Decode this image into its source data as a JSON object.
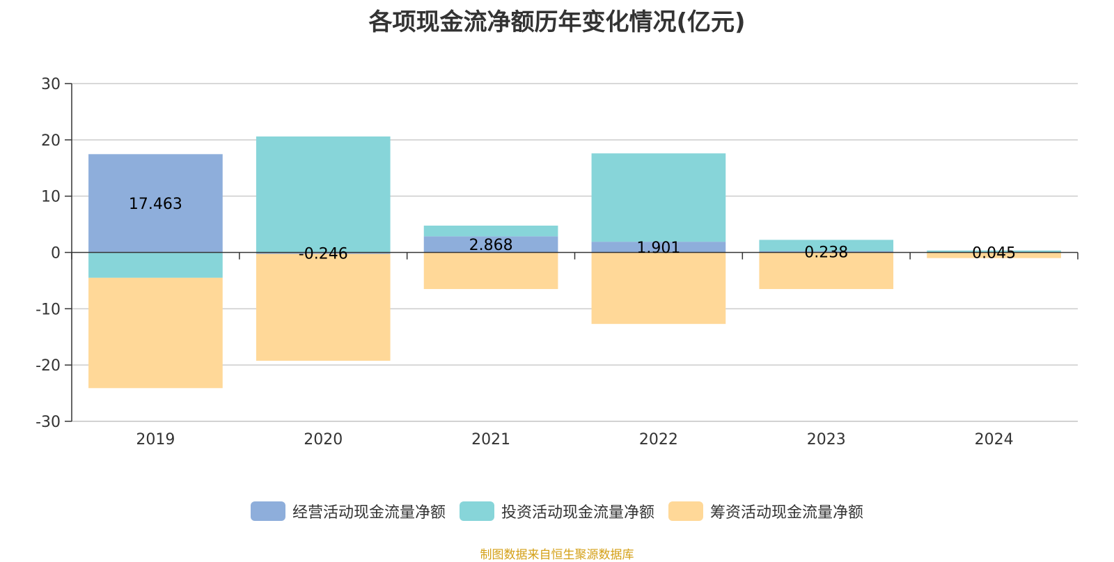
{
  "title": "各项现金流净额历年变化情况(亿元)",
  "source": "制图数据来自恒生聚源数据库",
  "colors": {
    "operating": "#8EAEDB",
    "investing": "#87D5D9",
    "financing": "#FFD898",
    "source_text": "#D4A017"
  },
  "chart_data": {
    "type": "bar",
    "stacked": true,
    "categories": [
      "2019",
      "2020",
      "2021",
      "2022",
      "2023",
      "2024"
    ],
    "ylim": [
      -30,
      30
    ],
    "yticks": [
      30,
      20,
      10,
      0,
      -10,
      -20,
      -30
    ],
    "grid": true,
    "legend_position": "bottom",
    "series": [
      {
        "name": "经营活动现金流量净额",
        "key": "operating",
        "values": [
          17.463,
          -0.246,
          2.868,
          1.901,
          0.238,
          0.045
        ]
      },
      {
        "name": "投资活动现金流量净额",
        "key": "investing",
        "values": [
          -4.5,
          20.6,
          1.9,
          15.7,
          2.0,
          0.3
        ]
      },
      {
        "name": "筹资活动现金流量净额",
        "key": "financing",
        "values": [
          -19.6,
          -19.0,
          -6.5,
          -12.7,
          -6.5,
          -1.0
        ]
      }
    ],
    "data_labels": [
      "17.463",
      "-0.246",
      "2.868",
      "1.901",
      "0.238",
      "0.045"
    ]
  }
}
